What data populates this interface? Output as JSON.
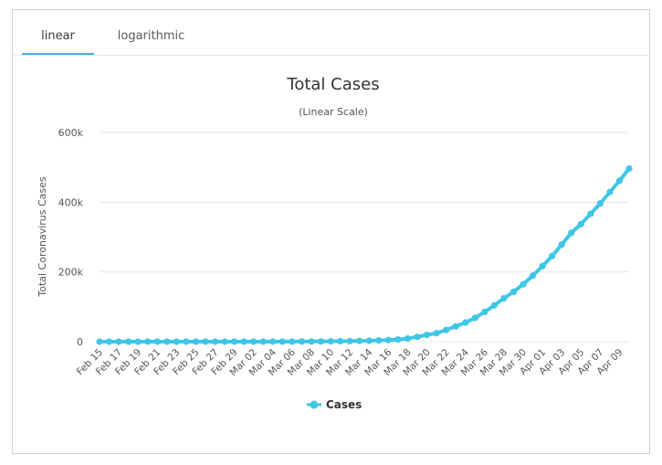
{
  "tabs": [
    {
      "label": "linear",
      "active": true
    },
    {
      "label": "logarithmic",
      "active": false
    }
  ],
  "colors": {
    "accent": "#3fc6e6",
    "tab_underline": "#3fb3d8",
    "grid": "#e6e6e6",
    "text": "#333333",
    "axis_text": "#555555"
  },
  "chart_data": {
    "type": "line",
    "title": "Total Cases",
    "subtitle": "(Linear Scale)",
    "ylabel": "Total Coronavirus Cases",
    "xlabel": "",
    "ylim": [
      0,
      600000
    ],
    "y_ticks": [
      0,
      200000,
      400000,
      600000
    ],
    "y_tick_labels": [
      "0",
      "200k",
      "400k",
      "600k"
    ],
    "grid": true,
    "legend": "bottom-center",
    "x": [
      "Feb 15",
      "Feb 16",
      "Feb 17",
      "Feb 18",
      "Feb 19",
      "Feb 20",
      "Feb 21",
      "Feb 22",
      "Feb 23",
      "Feb 24",
      "Feb 25",
      "Feb 26",
      "Feb 27",
      "Feb 28",
      "Feb 29",
      "Mar 01",
      "Mar 02",
      "Mar 03",
      "Mar 04",
      "Mar 05",
      "Mar 06",
      "Mar 07",
      "Mar 08",
      "Mar 09",
      "Mar 10",
      "Mar 11",
      "Mar 12",
      "Mar 13",
      "Mar 14",
      "Mar 15",
      "Mar 16",
      "Mar 17",
      "Mar 18",
      "Mar 19",
      "Mar 20",
      "Mar 21",
      "Mar 22",
      "Mar 23",
      "Mar 24",
      "Mar 25",
      "Mar 26",
      "Mar 27",
      "Mar 28",
      "Mar 29",
      "Mar 30",
      "Mar 31",
      "Apr 01",
      "Apr 02",
      "Apr 03",
      "Apr 04",
      "Apr 05",
      "Apr 06",
      "Apr 07",
      "Apr 08",
      "Apr 09",
      "Apr 10"
    ],
    "x_tick_labels": [
      "Feb 15",
      "Feb 17",
      "Feb 19",
      "Feb 21",
      "Feb 23",
      "Feb 25",
      "Feb 27",
      "Feb 29",
      "Mar 02",
      "Mar 04",
      "Mar 06",
      "Mar 08",
      "Mar 10",
      "Mar 12",
      "Mar 14",
      "Mar 16",
      "Mar 18",
      "Mar 20",
      "Mar 22",
      "Mar 24",
      "Mar 26",
      "Mar 28",
      "Mar 30",
      "Apr 01",
      "Apr 03",
      "Apr 05",
      "Apr 07",
      "Apr 09"
    ],
    "series": [
      {
        "name": "Cases",
        "color": "#3fc6e6",
        "values": [
          15,
          15,
          15,
          15,
          15,
          15,
          35,
          35,
          53,
          53,
          59,
          60,
          60,
          62,
          68,
          75,
          100,
          124,
          158,
          221,
          319,
          435,
          541,
          704,
          994,
          1301,
          1630,
          2183,
          2770,
          3613,
          4596,
          6344,
          9197,
          13779,
          19367,
          24192,
          33592,
          43781,
          54856,
          68211,
          85356,
          104126,
          124665,
          143025,
          164620,
          189618,
          216722,
          245540,
          278458,
          312245,
          337072,
          366667,
          396223,
          429052,
          461437,
          496535
        ]
      }
    ]
  }
}
